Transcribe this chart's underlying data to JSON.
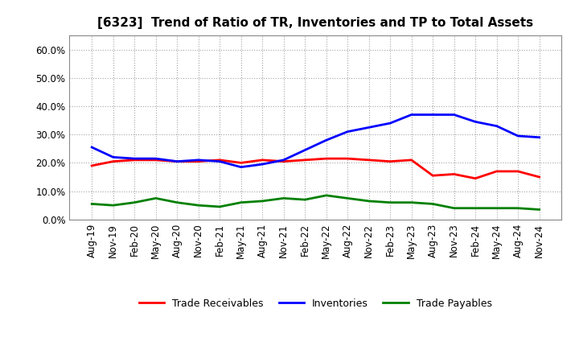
{
  "title": "[6323]  Trend of Ratio of TR, Inventories and TP to Total Assets",
  "x_labels": [
    "Aug-19",
    "Nov-19",
    "Feb-20",
    "May-20",
    "Aug-20",
    "Nov-20",
    "Feb-21",
    "May-21",
    "Aug-21",
    "Nov-21",
    "Feb-22",
    "May-22",
    "Aug-22",
    "Nov-22",
    "Feb-23",
    "May-23",
    "Aug-23",
    "Nov-23",
    "Feb-24",
    "May-24",
    "Aug-24",
    "Nov-24"
  ],
  "trade_receivables": [
    0.19,
    0.205,
    0.21,
    0.21,
    0.205,
    0.205,
    0.21,
    0.2,
    0.21,
    0.205,
    0.21,
    0.215,
    0.215,
    0.21,
    0.205,
    0.21,
    0.155,
    0.16,
    0.145,
    0.17,
    0.17,
    0.15
  ],
  "inventories": [
    0.255,
    0.22,
    0.215,
    0.215,
    0.205,
    0.21,
    0.205,
    0.185,
    0.195,
    0.21,
    0.245,
    0.28,
    0.31,
    0.325,
    0.34,
    0.37,
    0.37,
    0.37,
    0.345,
    0.33,
    0.295,
    0.29
  ],
  "trade_payables": [
    0.055,
    0.05,
    0.06,
    0.075,
    0.06,
    0.05,
    0.045,
    0.06,
    0.065,
    0.075,
    0.07,
    0.085,
    0.075,
    0.065,
    0.06,
    0.06,
    0.055,
    0.04,
    0.04,
    0.04,
    0.04,
    0.035
  ],
  "ylim": [
    0.0,
    0.65
  ],
  "yticks": [
    0.0,
    0.1,
    0.2,
    0.3,
    0.4,
    0.5,
    0.6
  ],
  "color_tr": "#FF0000",
  "color_inv": "#0000FF",
  "color_tp": "#008000",
  "bg_color": "#FFFFFF",
  "grid_color": "#999999",
  "legend_labels": [
    "Trade Receivables",
    "Inventories",
    "Trade Payables"
  ],
  "title_fontsize": 11,
  "tick_fontsize": 8.5,
  "linewidth": 2.0
}
